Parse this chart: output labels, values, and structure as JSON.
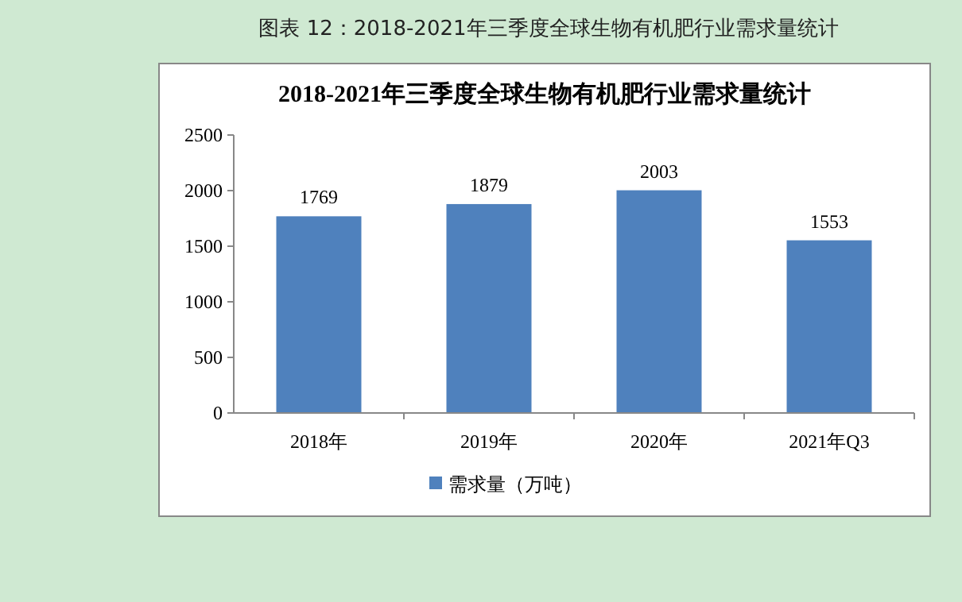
{
  "chart_data": {
    "type": "bar",
    "title": "2018-2021年三季度全球生物有机肥行业需求量统计",
    "annotations": [
      "图表 12：2018-2021年三季度全球生物有机肥行业需求量统计"
    ],
    "categories": [
      "2018年",
      "2019年",
      "2020年",
      "2021年Q3"
    ],
    "series": [
      {
        "name": "需求量（万吨）",
        "color": "#4f81bd",
        "values": [
          1769,
          1879,
          2003,
          1553
        ]
      }
    ],
    "ylim": [
      0,
      2500
    ],
    "yticks": [
      0,
      500,
      1000,
      1500,
      2000,
      2500
    ],
    "data_labels": true,
    "legend": "bottom"
  }
}
